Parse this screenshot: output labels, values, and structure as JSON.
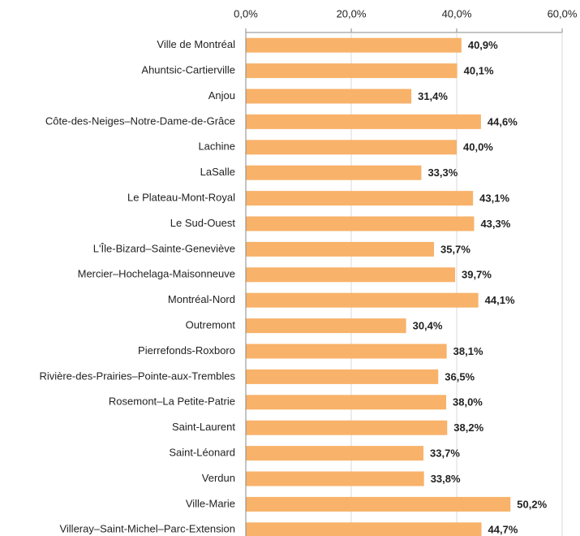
{
  "chart_data": {
    "type": "hbar",
    "categories": [
      "Ville de Montréal",
      "Ahuntsic-Cartierville",
      "Anjou",
      "Côte-des-Neiges–Notre-Dame-de-Grâce",
      "Lachine",
      "LaSalle",
      "Le Plateau-Mont-Royal",
      "Le Sud-Ouest",
      "L'Île-Bizard–Sainte-Geneviève",
      "Mercier–Hochelaga-Maisonneuve",
      "Montréal-Nord",
      "Outremont",
      "Pierrefonds-Roxboro",
      "Rivière-des-Prairies–Pointe-aux-Trembles",
      "Rosemont–La Petite-Patrie",
      "Saint-Laurent",
      "Saint-Léonard",
      "Verdun",
      "Ville-Marie",
      "Villeray–Saint-Michel–Parc-Extension"
    ],
    "values": [
      40.9,
      40.1,
      31.4,
      44.6,
      40.0,
      33.3,
      43.1,
      43.3,
      35.7,
      39.7,
      44.1,
      30.4,
      38.1,
      36.5,
      38.0,
      38.2,
      33.7,
      33.8,
      50.2,
      44.7
    ],
    "value_labels": [
      "40,9%",
      "40,1%",
      "31,4%",
      "44,6%",
      "40,0%",
      "33,3%",
      "43,1%",
      "43,3%",
      "35,7%",
      "39,7%",
      "44,1%",
      "30,4%",
      "38,1%",
      "36,5%",
      "38,0%",
      "38,2%",
      "33,7%",
      "33,8%",
      "50,2%",
      "44,7%"
    ],
    "color": "#f8b26a",
    "xlim": [
      0,
      60
    ],
    "xticks": [
      {
        "value": 0,
        "label": "0,0%"
      },
      {
        "value": 20,
        "label": "20,0%"
      },
      {
        "value": 40,
        "label": "40,0%"
      },
      {
        "value": 60,
        "label": "60,0%"
      }
    ],
    "grid": true
  }
}
